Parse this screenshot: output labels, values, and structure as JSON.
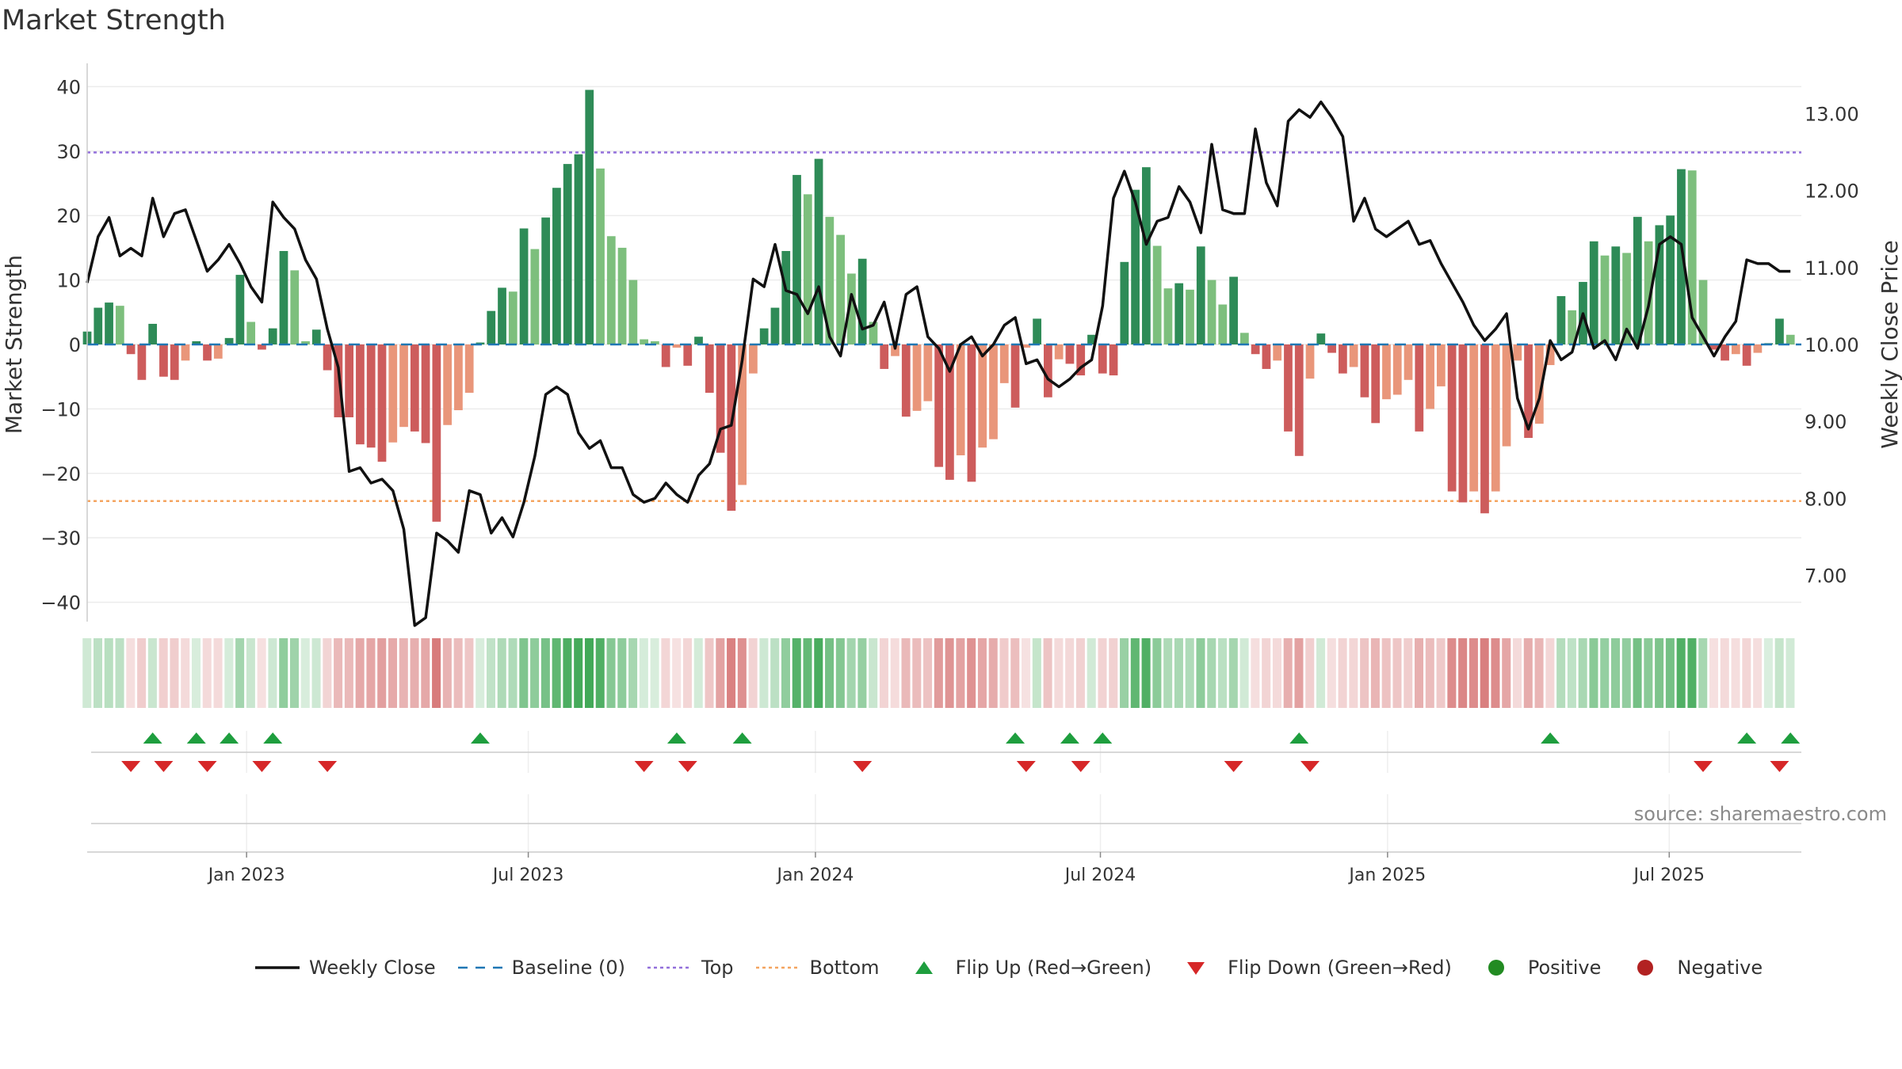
{
  "title": "Market Strength",
  "source": "source: sharemaestro.com",
  "legend": {
    "weekly_close": "Weekly Close",
    "baseline": "Baseline (0)",
    "top": "Top",
    "bottom": "Bottom",
    "flip_up": "Flip Up (Red→Green)",
    "flip_down": "Flip Down (Green→Red)",
    "positive": "Positive",
    "negative": "Negative"
  },
  "colors": {
    "strong_green": "#2e8b57",
    "light_green": "#7dbf7d",
    "strong_red": "#cd5c5c",
    "light_red": "#e9967a",
    "line": "#111111",
    "top_line": "#9370db",
    "bottom_line": "#f4a460",
    "baseline": "#1f77b4",
    "flip_up": "#1e9e3e",
    "flip_down": "#d62728",
    "positive": "#228b22",
    "negative": "#b22222"
  },
  "chart_data": {
    "type": "bar",
    "title": "Market Strength",
    "x_unit": "week",
    "start_week_offset_days": -140,
    "xlim_weeks": [
      0,
      157
    ],
    "x_ticks": [
      {
        "label": "Jan 2023",
        "week": 14.6
      },
      {
        "label": "Jul 2023",
        "week": 40.4
      },
      {
        "label": "Jan 2024",
        "week": 66.7
      },
      {
        "label": "Jul 2024",
        "week": 92.8
      },
      {
        "label": "Jan 2025",
        "week": 119.1
      },
      {
        "label": "Jul 2025",
        "week": 144.9
      }
    ],
    "ylabel": "Market Strength",
    "ylim": [
      -43,
      43
    ],
    "yticks": [
      40,
      30,
      20,
      10,
      0,
      -10,
      -20,
      -30,
      -40
    ],
    "y2label": "Weekly Close Price",
    "y2lim": [
      6.4,
      13.6
    ],
    "y2ticks": [
      7.0,
      8.0,
      9.0,
      10.0,
      11.0,
      12.0,
      13.0
    ],
    "top_level": 29.8,
    "bottom_level": -24.3,
    "baseline_level": 0,
    "strength_values": [
      2,
      5.7,
      6.5,
      6,
      -1.5,
      -5.5,
      3.2,
      -5,
      -5.5,
      -2.5,
      0.5,
      -2.5,
      -2.2,
      1,
      10.8,
      3.5,
      -0.8,
      2.5,
      14.5,
      11.5,
      0.5,
      2.3,
      -4,
      -11.3,
      -11.3,
      -15.5,
      -16,
      -18.2,
      -15.2,
      -12.8,
      -13.5,
      -15.3,
      -27.5,
      -12.5,
      -10.2,
      -7.5,
      0.3,
      5.2,
      8.8,
      8.2,
      18,
      14.8,
      19.7,
      24.3,
      28,
      29.5,
      39.5,
      27.3,
      16.8,
      15,
      10,
      0.8,
      0.5,
      -3.5,
      -0.5,
      -3.3,
      1.2,
      -7.5,
      -16.8,
      -25.8,
      -21.8,
      -4.5,
      2.5,
      5.7,
      14.5,
      26.3,
      23.3,
      28.8,
      19.8,
      17,
      11,
      13.3,
      3.5,
      -3.8,
      -1.8,
      -11.2,
      -10.3,
      -8.8,
      -19,
      -21,
      -17.2,
      -21.3,
      -16,
      -14.7,
      -6,
      -9.8,
      -0.5,
      4,
      -8.2,
      -2.3,
      -3,
      -4.8,
      1.5,
      -4.5,
      -4.8,
      12.8,
      24,
      27.5,
      15.3,
      8.7,
      9.5,
      8.5,
      15.2,
      10,
      6.2,
      10.5,
      1.8,
      -1.5,
      -3.8,
      -2.5,
      -13.5,
      -17.3,
      -5.3,
      1.7,
      -1.3,
      -4.5,
      -3.5,
      -8.2,
      -12.2,
      -8.5,
      -7.8,
      -5.5,
      -13.5,
      -10,
      -6.5,
      -22.8,
      -24.5,
      -22.8,
      -26.2,
      -22.8,
      -15.8,
      -2.5,
      -14.5,
      -12.3,
      -3.2,
      7.5,
      5.3,
      9.7,
      16,
      13.8,
      15.2,
      14.2,
      19.8,
      16,
      18.5,
      20,
      27.2,
      27,
      10,
      -0.8,
      -2.5,
      -1.5,
      -3.3,
      -1.3,
      0.2,
      4,
      1.5
    ],
    "weekly_close": [
      10.8,
      11.4,
      11.65,
      11.15,
      11.25,
      11.15,
      11.9,
      11.4,
      11.7,
      11.75,
      11.35,
      10.95,
      11.1,
      11.3,
      11.05,
      10.75,
      10.55,
      11.85,
      11.65,
      11.5,
      11.1,
      10.85,
      10.2,
      9.7,
      8.35,
      8.4,
      8.2,
      8.25,
      8.1,
      7.6,
      6.35,
      6.45,
      7.55,
      7.45,
      7.3,
      8.1,
      8.05,
      7.55,
      7.75,
      7.5,
      7.95,
      8.55,
      9.35,
      9.45,
      9.35,
      8.85,
      8.65,
      8.75,
      8.4,
      8.4,
      8.05,
      7.95,
      8.0,
      8.2,
      8.05,
      7.95,
      8.3,
      8.45,
      8.9,
      8.95,
      9.8,
      10.85,
      10.75,
      11.3,
      10.7,
      10.65,
      10.4,
      10.75,
      10.1,
      9.85,
      10.65,
      10.2,
      10.25,
      10.55,
      9.95,
      10.65,
      10.75,
      10.1,
      9.95,
      9.65,
      10.0,
      10.1,
      9.85,
      10.0,
      10.25,
      10.35,
      9.75,
      9.8,
      9.55,
      9.45,
      9.55,
      9.7,
      9.8,
      10.5,
      11.9,
      12.25,
      11.85,
      11.3,
      11.6,
      11.65,
      12.05,
      11.85,
      11.45,
      12.6,
      11.75,
      11.7,
      11.7,
      12.8,
      12.1,
      11.8,
      12.9,
      13.05,
      12.95,
      13.15,
      12.95,
      12.7,
      11.6,
      11.9,
      11.5,
      11.4,
      11.5,
      11.6,
      11.3,
      11.35,
      11.05,
      10.8,
      10.55,
      10.25,
      10.05,
      10.2,
      10.4,
      9.3,
      8.9,
      9.3,
      10.05,
      9.8,
      9.9,
      10.4,
      9.95,
      10.05,
      9.8,
      10.2,
      9.95,
      10.5,
      11.3,
      11.4,
      11.3,
      10.35,
      10.1,
      9.85,
      10.1,
      10.3,
      11.1,
      11.05,
      11.05,
      10.95,
      10.95
    ],
    "flip_up_weeks": [
      6,
      10,
      13,
      17,
      36,
      54,
      60,
      85,
      90,
      93,
      111,
      134,
      152,
      156
    ],
    "flip_down_weeks": [
      4,
      7,
      11,
      16,
      22,
      51,
      55,
      71,
      86,
      91,
      105,
      112,
      148,
      155
    ]
  }
}
